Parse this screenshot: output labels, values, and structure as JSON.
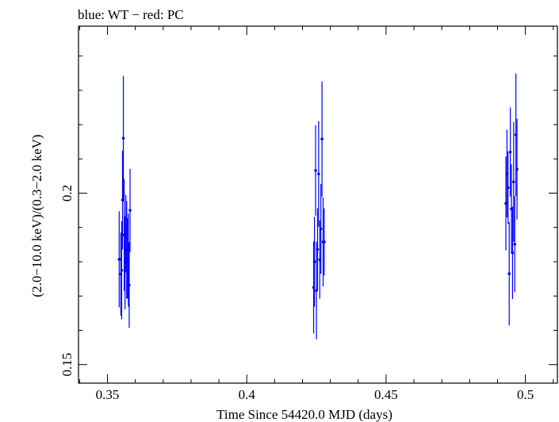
{
  "chart_data": {
    "type": "scatter",
    "title": "blue: WT − red: PC",
    "xlabel": "Time Since 54420.0 MJD (days)",
    "ylabel": "(2.0−10.0 keV)/(0.3−2.0 keV)",
    "xlim": [
      0.3396,
      0.5115
    ],
    "ylim": [
      0.1446,
      0.2487
    ],
    "x_ticks": [
      0.35,
      0.4,
      0.45,
      0.5
    ],
    "x_tick_labels": [
      "0.35",
      "0.4",
      "0.45",
      "0.5"
    ],
    "y_ticks": [
      0.15,
      0.2
    ],
    "y_tick_labels": [
      "0.15",
      "0.2"
    ],
    "series": [
      {
        "name": "WT",
        "color": "#0000ff",
        "points": [
          {
            "x": 0.3542,
            "y": 0.1807,
            "err": 0.014
          },
          {
            "x": 0.3548,
            "y": 0.1764,
            "err": 0.0121
          },
          {
            "x": 0.3551,
            "y": 0.1775,
            "err": 0.0143
          },
          {
            "x": 0.3554,
            "y": 0.198,
            "err": 0.0144
          },
          {
            "x": 0.3557,
            "y": 0.216,
            "err": 0.0182
          },
          {
            "x": 0.356,
            "y": 0.1878,
            "err": 0.0163
          },
          {
            "x": 0.3563,
            "y": 0.1797,
            "err": 0.0136
          },
          {
            "x": 0.3566,
            "y": 0.1882,
            "err": 0.0113
          },
          {
            "x": 0.3569,
            "y": 0.1835,
            "err": 0.0142
          },
          {
            "x": 0.3572,
            "y": 0.181,
            "err": 0.0118
          },
          {
            "x": 0.3575,
            "y": 0.1805,
            "err": 0.0136
          },
          {
            "x": 0.3578,
            "y": 0.1732,
            "err": 0.0125
          },
          {
            "x": 0.3581,
            "y": 0.195,
            "err": 0.0121
          },
          {
            "x": 0.424,
            "y": 0.1725,
            "err": 0.0134
          },
          {
            "x": 0.4243,
            "y": 0.18,
            "err": 0.0131
          },
          {
            "x": 0.4247,
            "y": 0.2066,
            "err": 0.0132
          },
          {
            "x": 0.425,
            "y": 0.1716,
            "err": 0.0142
          },
          {
            "x": 0.4254,
            "y": 0.1836,
            "err": 0.012
          },
          {
            "x": 0.4258,
            "y": 0.2056,
            "err": 0.0154
          },
          {
            "x": 0.4262,
            "y": 0.1806,
            "err": 0.0114
          },
          {
            "x": 0.4266,
            "y": 0.1896,
            "err": 0.0131
          },
          {
            "x": 0.427,
            "y": 0.2158,
            "err": 0.0168
          },
          {
            "x": 0.4274,
            "y": 0.1858,
            "err": 0.013
          },
          {
            "x": 0.4278,
            "y": 0.1858,
            "err": 0.0098
          },
          {
            "x": 0.493,
            "y": 0.197,
            "err": 0.0137
          },
          {
            "x": 0.4934,
            "y": 0.2057,
            "err": 0.0128
          },
          {
            "x": 0.4938,
            "y": 0.2016,
            "err": 0.0106
          },
          {
            "x": 0.4942,
            "y": 0.1765,
            "err": 0.0151
          },
          {
            "x": 0.4946,
            "y": 0.212,
            "err": 0.013
          },
          {
            "x": 0.495,
            "y": 0.1954,
            "err": 0.013
          },
          {
            "x": 0.4954,
            "y": 0.1826,
            "err": 0.0135
          },
          {
            "x": 0.4958,
            "y": 0.2033,
            "err": 0.0175
          },
          {
            "x": 0.4962,
            "y": 0.1851,
            "err": 0.014
          },
          {
            "x": 0.4966,
            "y": 0.217,
            "err": 0.0179
          },
          {
            "x": 0.497,
            "y": 0.207,
            "err": 0.0147
          }
        ]
      }
    ]
  }
}
